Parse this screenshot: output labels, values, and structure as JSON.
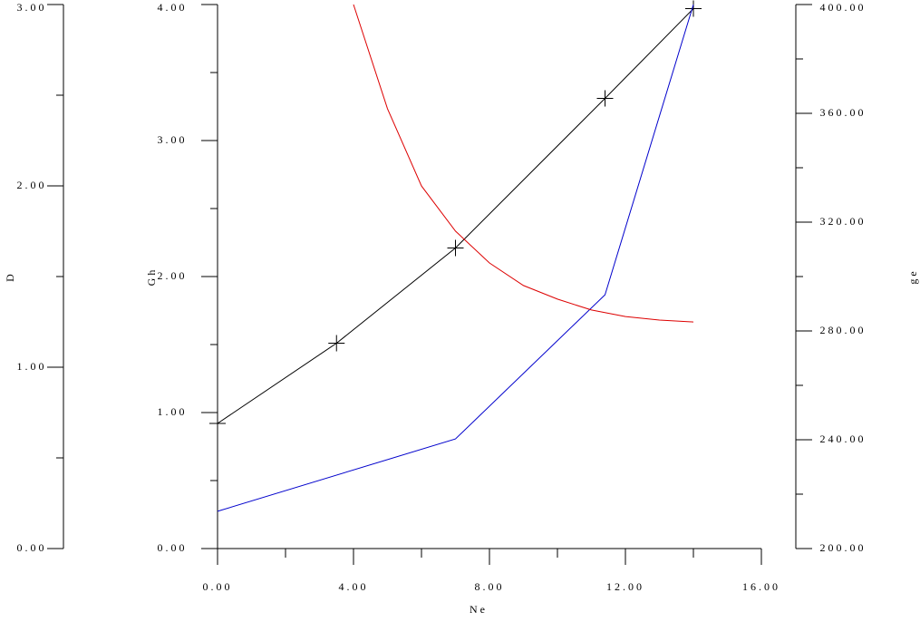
{
  "chart_data": {
    "type": "line",
    "xlabel": "Ne",
    "xlim": [
      0,
      16
    ],
    "xticks": [
      {
        "value": 0,
        "label": "0.00"
      },
      {
        "value": 4,
        "label": "4.00"
      },
      {
        "value": 8,
        "label": "8.00"
      },
      {
        "value": 12,
        "label": "12.00"
      },
      {
        "value": 16,
        "label": "16.00"
      }
    ],
    "xminorticks": [
      2,
      6,
      10,
      14
    ],
    "ylabel": "Gh",
    "ylim": [
      0,
      4
    ],
    "yticks": [
      {
        "value": 0,
        "label": "0.00"
      },
      {
        "value": 1,
        "label": "1.00"
      },
      {
        "value": 2,
        "label": "2.00"
      },
      {
        "value": 3,
        "label": "3.00"
      },
      {
        "value": 4,
        "label": "4.00"
      }
    ],
    "yminorticks": [
      0.5,
      1.5,
      2.5,
      3.5
    ],
    "y2label": "ge",
    "y2lim": [
      200,
      400
    ],
    "y2ticks": [
      {
        "value": 200,
        "label": "200.00"
      },
      {
        "value": 240,
        "label": "240.00"
      },
      {
        "value": 280,
        "label": "280.00"
      },
      {
        "value": 320,
        "label": "320.00"
      },
      {
        "value": 360,
        "label": "360.00"
      },
      {
        "value": 400,
        "label": "400.00"
      }
    ],
    "y2minorticks": [
      220,
      260,
      300,
      340,
      380
    ],
    "y3label": "D",
    "y3lim": [
      0,
      3
    ],
    "y3ticks": [
      {
        "value": 0,
        "label": "0.00"
      },
      {
        "value": 1,
        "label": "1.00"
      },
      {
        "value": 2,
        "label": "2.00"
      },
      {
        "value": 3,
        "label": "3.00"
      }
    ],
    "y3minorticks": [
      0.5,
      1.5,
      2.5
    ],
    "series": [
      {
        "color": "#000000",
        "axis": "y",
        "marker": "+",
        "x": [
          0,
          3.5,
          7,
          11.4,
          14
        ],
        "values": [
          0.92,
          1.51,
          2.21,
          3.31,
          3.97
        ]
      },
      {
        "color": "#0000cc",
        "axis": "y2",
        "x": [
          0,
          7,
          11.4,
          14
        ],
        "values": [
          213.7,
          240.3,
          293.3,
          400
        ]
      },
      {
        "color": "#dd0000",
        "axis": "y2",
        "x": [
          4,
          5,
          6,
          7,
          8,
          9,
          10,
          11,
          12,
          13,
          14
        ],
        "values": [
          400,
          361.7,
          333.3,
          316.7,
          305,
          296.7,
          291.7,
          287.7,
          285.3,
          284,
          283.3
        ]
      }
    ]
  }
}
